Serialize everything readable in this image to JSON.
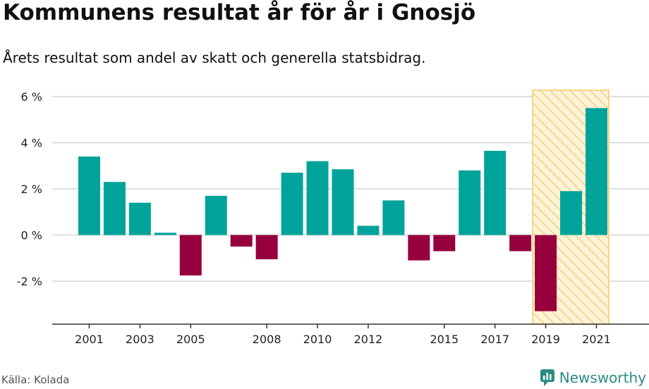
{
  "header": {
    "title": "Kommunens resultat år för år i Gnosjö",
    "subtitle": "Årets resultat som andel av skatt och generella statsbidrag."
  },
  "footer": {
    "source": "Källa: Kolada",
    "brand": "Newsworthy"
  },
  "colors": {
    "positive": "#00a39a",
    "negative": "#96003c",
    "highlight_fill": "#fde9b4",
    "highlight_stroke": "#f6c865",
    "grid": "#d6d6d6",
    "axis": "#333333",
    "brand": "#2b8c86"
  },
  "chart_data": {
    "type": "bar",
    "title": "",
    "xlabel": "",
    "ylabel": "",
    "categories": [
      2001,
      2002,
      2003,
      2004,
      2005,
      2006,
      2007,
      2008,
      2009,
      2010,
      2011,
      2012,
      2013,
      2014,
      2015,
      2016,
      2017,
      2018,
      2019,
      2020,
      2021
    ],
    "values": [
      3.4,
      2.3,
      1.4,
      0.1,
      -1.75,
      1.7,
      -0.5,
      -1.05,
      2.7,
      3.2,
      2.85,
      0.4,
      1.5,
      -1.1,
      -0.7,
      2.8,
      3.65,
      -0.7,
      -3.3,
      1.9,
      5.5
    ],
    "ylim": [
      -3.8,
      6.3
    ],
    "yticks": [
      6,
      4,
      2,
      0,
      -2
    ],
    "ytick_labels": [
      "6 %",
      "4 %",
      "2 %",
      "0 %",
      "-2 %"
    ],
    "xtick_labels": [
      "2001",
      "2003",
      "2005",
      "2008",
      "2010",
      "2012",
      "2015",
      "2017",
      "2019",
      "2021"
    ],
    "highlight_range": [
      "2019",
      "2021"
    ],
    "grid": true,
    "legend": "none"
  }
}
